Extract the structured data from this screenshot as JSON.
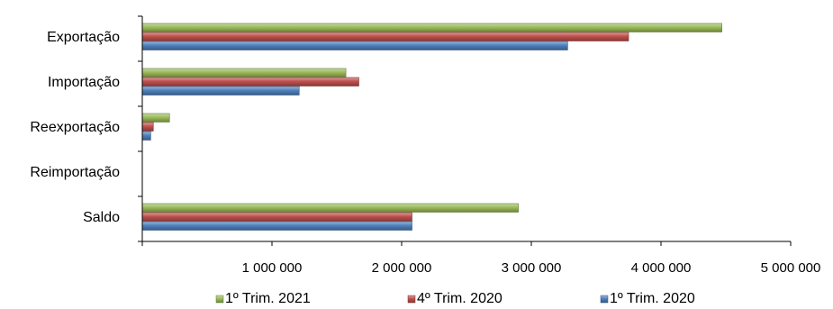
{
  "chart_data": {
    "type": "bar",
    "orientation": "horizontal",
    "categories": [
      "Exportação",
      "Importação",
      "Reexportação",
      "Reimportação",
      "Saldo"
    ],
    "series": [
      {
        "name": "1º Trim. 2021",
        "color": "#9BBB59",
        "values": [
          4470000,
          1570000,
          210000,
          0,
          2900000
        ]
      },
      {
        "name": "4º Trim. 2020",
        "color": "#C0504D",
        "values": [
          3750000,
          1670000,
          85000,
          0,
          2080000
        ]
      },
      {
        "name": "1º Trim. 2020",
        "color": "#4F81BD",
        "values": [
          3280000,
          1210000,
          65000,
          0,
          2080000
        ]
      }
    ],
    "xlim": [
      0,
      5000000
    ],
    "xticks": [
      1000000,
      2000000,
      3000000,
      4000000,
      5000000
    ],
    "xtick_labels": [
      "1 000 000",
      "2 000 000",
      "3 000 000",
      "4 000 000",
      "5 000 000"
    ],
    "grid": false,
    "legend_position": "bottom"
  }
}
